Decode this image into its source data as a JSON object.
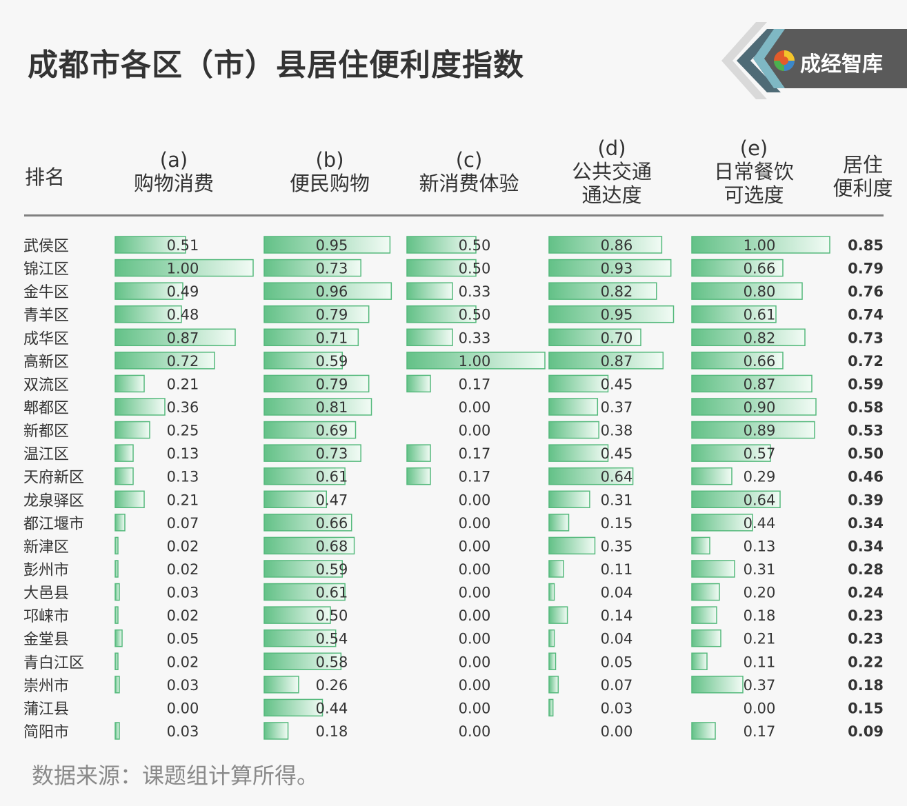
{
  "title": "成都市各区（市）县居住便利度指数",
  "logo_text": "成经智库",
  "footer": "数据来源：课题组计算所得。",
  "colors": {
    "bar_dark": "#63c187",
    "bar_light": "#f2fbf5",
    "bar_border": "#55b97c",
    "text": "#333333",
    "rule": "#808080"
  },
  "chart_data": {
    "type": "table",
    "columns": [
      {
        "key": "rank",
        "lines": [
          "排名"
        ]
      },
      {
        "key": "a",
        "lines": [
          "(a)",
          "购物消费"
        ]
      },
      {
        "key": "b",
        "lines": [
          "(b)",
          "便民购物"
        ]
      },
      {
        "key": "c",
        "lines": [
          "(c)",
          "新消费体验"
        ]
      },
      {
        "key": "d",
        "lines": [
          "(d)",
          "公共交通",
          "通达度"
        ]
      },
      {
        "key": "e",
        "lines": [
          "(e)",
          "日常餐饮",
          "可选度"
        ]
      },
      {
        "key": "total",
        "lines": [
          "居住",
          "便利度"
        ]
      }
    ],
    "rows": [
      {
        "name": "武侯区",
        "a": "0.51",
        "b": "0.95",
        "c": "0.50",
        "d": "0.86",
        "e": "1.00",
        "total": "0.85"
      },
      {
        "name": "锦江区",
        "a": "1.00",
        "b": "0.73",
        "c": "0.50",
        "d": "0.93",
        "e": "0.66",
        "total": "0.79"
      },
      {
        "name": "金牛区",
        "a": "0.49",
        "b": "0.96",
        "c": "0.33",
        "d": "0.82",
        "e": "0.80",
        "total": "0.76"
      },
      {
        "name": "青羊区",
        "a": "0.48",
        "b": "0.79",
        "c": "0.50",
        "d": "0.95",
        "e": "0.61",
        "total": "0.74"
      },
      {
        "name": "成华区",
        "a": "0.87",
        "b": "0.71",
        "c": "0.33",
        "d": "0.70",
        "e": "0.82",
        "total": "0.73"
      },
      {
        "name": "高新区",
        "a": "0.72",
        "b": "0.59",
        "c": "1.00",
        "d": "0.87",
        "e": "0.66",
        "total": "0.72"
      },
      {
        "name": "双流区",
        "a": "0.21",
        "b": "0.79",
        "c": "0.17",
        "d": "0.45",
        "e": "0.87",
        "total": "0.59"
      },
      {
        "name": "郫都区",
        "a": "0.36",
        "b": "0.81",
        "c": "0.00",
        "d": "0.37",
        "e": "0.90",
        "total": "0.58"
      },
      {
        "name": "新都区",
        "a": "0.25",
        "b": "0.69",
        "c": "0.00",
        "d": "0.38",
        "e": "0.89",
        "total": "0.53"
      },
      {
        "name": "温江区",
        "a": "0.13",
        "b": "0.73",
        "c": "0.17",
        "d": "0.45",
        "e": "0.57",
        "total": "0.50"
      },
      {
        "name": "天府新区",
        "a": "0.13",
        "b": "0.61",
        "c": "0.17",
        "d": "0.64",
        "e": "0.29",
        "total": "0.46"
      },
      {
        "name": "龙泉驿区",
        "a": "0.21",
        "b": "0.47",
        "c": "0.00",
        "d": "0.31",
        "e": "0.64",
        "total": "0.39"
      },
      {
        "name": "都江堰市",
        "a": "0.07",
        "b": "0.66",
        "c": "0.00",
        "d": "0.15",
        "e": "0.44",
        "total": "0.34"
      },
      {
        "name": "新津区",
        "a": "0.02",
        "b": "0.68",
        "c": "0.00",
        "d": "0.35",
        "e": "0.13",
        "total": "0.34"
      },
      {
        "name": "彭州市",
        "a": "0.02",
        "b": "0.59",
        "c": "0.00",
        "d": "0.11",
        "e": "0.31",
        "total": "0.28"
      },
      {
        "name": "大邑县",
        "a": "0.03",
        "b": "0.61",
        "c": "0.00",
        "d": "0.04",
        "e": "0.20",
        "total": "0.24"
      },
      {
        "name": "邛崃市",
        "a": "0.02",
        "b": "0.50",
        "c": "0.00",
        "d": "0.14",
        "e": "0.18",
        "total": "0.23"
      },
      {
        "name": "金堂县",
        "a": "0.05",
        "b": "0.54",
        "c": "0.00",
        "d": "0.04",
        "e": "0.21",
        "total": "0.23"
      },
      {
        "name": "青白江区",
        "a": "0.02",
        "b": "0.58",
        "c": "0.00",
        "d": "0.05",
        "e": "0.11",
        "total": "0.22"
      },
      {
        "name": "崇州市",
        "a": "0.03",
        "b": "0.26",
        "c": "0.00",
        "d": "0.07",
        "e": "0.37",
        "total": "0.18"
      },
      {
        "name": "蒲江县",
        "a": "0.00",
        "b": "0.44",
        "c": "0.00",
        "d": "0.03",
        "e": "0.00",
        "total": "0.15"
      },
      {
        "name": "简阳市",
        "a": "0.03",
        "b": "0.18",
        "c": "0.00",
        "d": "0.00",
        "e": "0.17",
        "total": "0.09"
      }
    ]
  }
}
